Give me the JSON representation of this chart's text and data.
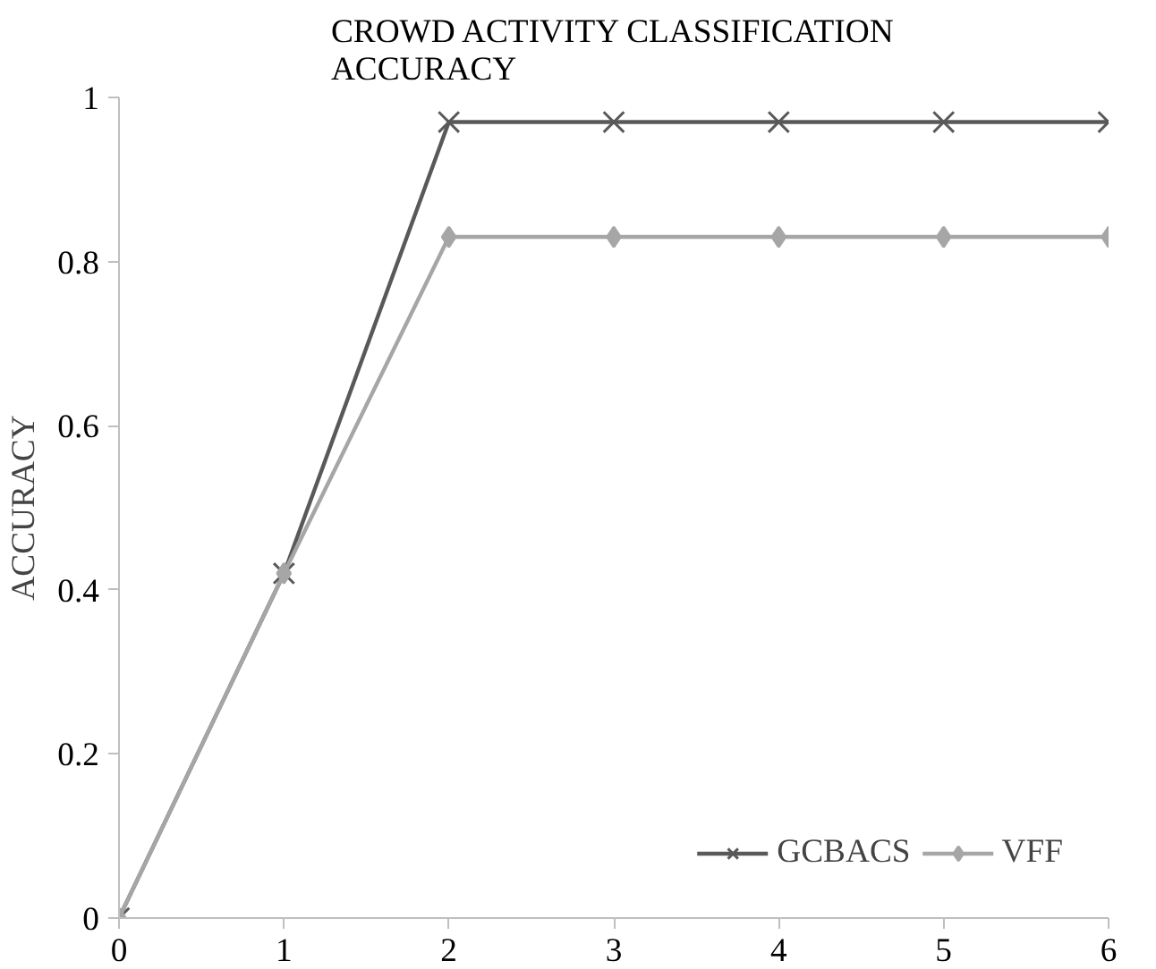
{
  "chart_data": {
    "type": "line",
    "title": "CROWD ACTIVITY CLASSIFICATION\nACCURACY",
    "ylabel": "ACCURACY",
    "x": [
      0,
      1,
      2,
      3,
      4,
      5,
      6
    ],
    "series": [
      {
        "name": "GCBACS",
        "color": "#595959",
        "marker": "cross",
        "values": [
          0,
          0.42,
          0.97,
          0.97,
          0.97,
          0.97,
          0.97
        ]
      },
      {
        "name": "VFF",
        "color": "#a6a6a6",
        "marker": "diamond",
        "values": [
          0,
          0.42,
          0.83,
          0.83,
          0.83,
          0.83,
          0.83
        ]
      }
    ],
    "xlim": [
      0,
      6
    ],
    "xticks": [
      0,
      1,
      2,
      3,
      4,
      5,
      6
    ],
    "ylim": [
      0,
      1
    ],
    "yticks": [
      0,
      {
        "value": 0.2,
        "label": "0.2"
      },
      {
        "value": 0.4,
        "label": "0.4"
      },
      {
        "value": 0.6,
        "label": "0.6"
      },
      {
        "value": 0.8,
        "label": "0.8"
      },
      1
    ],
    "grid": false,
    "legend": "bottom right",
    "line_style": "solid"
  }
}
